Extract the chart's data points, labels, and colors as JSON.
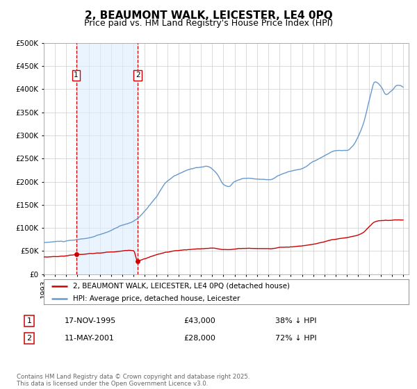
{
  "title": "2, BEAUMONT WALK, LEICESTER, LE4 0PQ",
  "subtitle": "Price paid vs. HM Land Registry's House Price Index (HPI)",
  "legend_label_red": "2, BEAUMONT WALK, LEICESTER, LE4 0PQ (detached house)",
  "legend_label_blue": "HPI: Average price, detached house, Leicester",
  "transaction1_date": "17-NOV-1995",
  "transaction1_price": "£43,000",
  "transaction1_hpi": "38% ↓ HPI",
  "transaction1_year": 1995.88,
  "transaction1_value": 43000,
  "transaction2_date": "11-MAY-2001",
  "transaction2_price": "£28,000",
  "transaction2_hpi": "72% ↓ HPI",
  "transaction2_year": 2001.37,
  "transaction2_value": 28000,
  "footer": "Contains HM Land Registry data © Crown copyright and database right 2025.\nThis data is licensed under the Open Government Licence v3.0.",
  "ylim": [
    0,
    500000
  ],
  "yticks": [
    0,
    50000,
    100000,
    150000,
    200000,
    250000,
    300000,
    350000,
    400000,
    450000,
    500000
  ],
  "xlim_start": 1993.0,
  "xlim_end": 2025.5,
  "background_color": "#ffffff",
  "plot_bg_color": "#ffffff",
  "grid_color": "#cccccc",
  "red_line_color": "#cc0000",
  "blue_line_color": "#6699cc",
  "vline_color": "#cc0000",
  "shade_color": "#ddeeff",
  "title_fontsize": 11,
  "subtitle_fontsize": 9,
  "tick_fontsize": 7.5
}
